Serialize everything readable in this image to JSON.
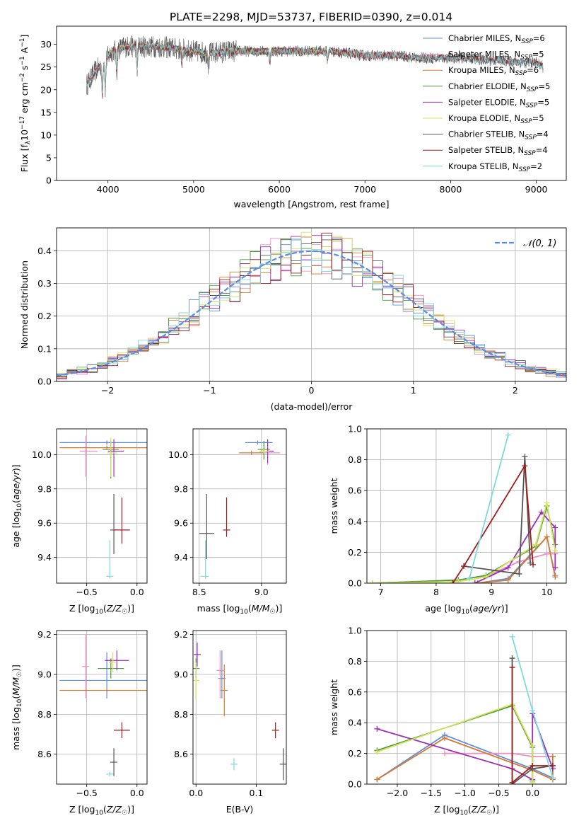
{
  "figure_title": "PLATE=2298, MJD=53737, FIBERID=0390, z=0.014",
  "colors": {
    "Chabrier MILES": "#5b8ee6",
    "Salpeter MILES": "#f08cc8",
    "Kroupa MILES": "#d97a2b",
    "Chabrier ELODIE": "#4c9a3f",
    "Salpeter ELODIE": "#9b2fb5",
    "Kroupa ELODIE": "#d6e35a",
    "Chabrier STELIB": "#555555",
    "Salpeter STELIB": "#a01c1c",
    "Kroupa STELIB": "#7fd9e0",
    "normal_curve": "#5b8ee6"
  },
  "chart_data": [
    {
      "id": "spectrum",
      "type": "line",
      "title": "PLATE=2298, MJD=53737, FIBERID=0390, z=0.014",
      "xlabel": "wavelength [Angstrom, rest frame]",
      "ylabel": "Flux [f_λ10^-17 erg cm^-2 s^-1 A^-1]",
      "xlim": [
        3400,
        9350
      ],
      "ylim": [
        0,
        34
      ],
      "xticks": [
        4000,
        5000,
        6000,
        7000,
        8000,
        9000
      ],
      "yticks": [
        0,
        5,
        10,
        15,
        20,
        25,
        30
      ],
      "grid": false,
      "legend_position": "top-right",
      "legend": [
        {
          "name": "Chabrier MILES",
          "nssp": 6
        },
        {
          "name": "Salpeter MILES",
          "nssp": 5
        },
        {
          "name": "Kroupa MILES",
          "nssp": 6
        },
        {
          "name": "Chabrier ELODIE",
          "nssp": 5
        },
        {
          "name": "Salpeter ELODIE",
          "nssp": 5
        },
        {
          "name": "Kroupa ELODIE",
          "nssp": 5
        },
        {
          "name": "Chabrier STELIB",
          "nssp": 4
        },
        {
          "name": "Salpeter STELIB",
          "nssp": 4
        },
        {
          "name": "Kroupa STELIB",
          "nssp": 2
        }
      ],
      "spectrum_wavelengths": [
        3750,
        3850,
        3950,
        4050,
        4200,
        4400,
        4600,
        4800,
        5000,
        5200,
        5400,
        5600,
        5800,
        6000,
        6200,
        6400,
        6600,
        6800,
        7000,
        7200,
        7400,
        7600,
        7800,
        8000,
        8200,
        8400,
        8600,
        8800,
        9000,
        9080
      ],
      "spectrum_flux": [
        21,
        24,
        26,
        28.5,
        29.5,
        29.5,
        29.5,
        29,
        28.5,
        28,
        28.5,
        28.5,
        28.5,
        28.5,
        28.5,
        28.5,
        28.5,
        28,
        27.5,
        27.5,
        27.5,
        27,
        27,
        27,
        27,
        26.5,
        26.5,
        26,
        26,
        25
      ],
      "models_wavelength_range": {
        "Chabrier MILES": [
          3750,
          7400
        ],
        "Salpeter MILES": [
          3750,
          7400
        ],
        "Kroupa MILES": [
          3750,
          7400
        ],
        "Chabrier ELODIE": [
          3900,
          6800
        ],
        "Salpeter ELODIE": [
          3900,
          6800
        ],
        "Kroupa ELODIE": [
          3900,
          6800
        ],
        "Chabrier STELIB": [
          3750,
          9080
        ],
        "Salpeter STELIB": [
          3750,
          9080
        ],
        "Kroupa STELIB": [
          3750,
          9080
        ]
      }
    },
    {
      "id": "residuals",
      "type": "histogram",
      "xlabel": "(data-model)/error",
      "ylabel": "Normed distribution",
      "xlim": [
        -2.5,
        2.5
      ],
      "ylim": [
        0,
        0.47
      ],
      "xticks": [
        -2,
        -1,
        0,
        1,
        2
      ],
      "yticks": [
        0.0,
        0.1,
        0.2,
        0.3,
        0.4
      ],
      "grid": true,
      "legend_position": "top-right",
      "legend": [
        "𝒩(0, 1)"
      ],
      "bin_width": 0.1
    },
    {
      "id": "age_vs_Z",
      "type": "errorbar",
      "xlabel": "Z [log10(Z/Z☉)]",
      "ylabel": "age [log10(age/yr)]",
      "xlim": [
        -0.8,
        0.1
      ],
      "ylim": [
        9.25,
        10.15
      ],
      "xticks": [
        -0.5,
        0.0
      ],
      "yticks": [
        9.4,
        9.6,
        9.8,
        10.0
      ],
      "grid": true,
      "points": [
        {
          "series": "Chabrier MILES",
          "x": -0.3,
          "y": 10.07,
          "xerr": [
            0.47,
            0.4
          ],
          "yerr": [
            0.0,
            0.0
          ]
        },
        {
          "series": "Salpeter MILES",
          "x": -0.51,
          "y": 10.02,
          "xerr": [
            0.06,
            0.12
          ],
          "yerr": [
            0.15,
            0.09
          ]
        },
        {
          "series": "Kroupa MILES",
          "x": -0.3,
          "y": 10.04,
          "xerr": [
            0.47,
            0.4
          ],
          "yerr": [
            0.0,
            0.0
          ]
        },
        {
          "series": "Chabrier ELODIE",
          "x": -0.26,
          "y": 10.03,
          "xerr": [
            0.08,
            0.08
          ],
          "yerr": [
            0.17,
            0.05
          ]
        },
        {
          "series": "Salpeter ELODIE",
          "x": -0.23,
          "y": 10.02,
          "xerr": [
            0.06,
            0.1
          ],
          "yerr": [
            0.15,
            0.07
          ]
        },
        {
          "series": "Kroupa ELODIE",
          "x": -0.26,
          "y": 10.01,
          "xerr": [
            0.02,
            0.06
          ],
          "yerr": [
            0.14,
            0.09
          ]
        },
        {
          "series": "Chabrier STELIB",
          "x": -0.23,
          "y": 9.56,
          "xerr": [
            0.03,
            0.03
          ],
          "yerr": [
            0.14,
            0.21
          ]
        },
        {
          "series": "Salpeter STELIB",
          "x": -0.15,
          "y": 9.56,
          "xerr": [
            0.08,
            0.08
          ],
          "yerr": [
            0.08,
            0.19
          ]
        },
        {
          "series": "Kroupa STELIB",
          "x": -0.27,
          "y": 9.29,
          "xerr": [
            0.02,
            0.0
          ],
          "yerr": [
            0.0,
            0.21
          ]
        }
      ]
    },
    {
      "id": "age_vs_mass",
      "type": "errorbar",
      "xlabel": "mass [log10(M/M☉)]",
      "ylabel": "",
      "xlim": [
        8.45,
        9.2
      ],
      "ylim": [
        9.25,
        10.15
      ],
      "xticks": [
        8.5,
        9.0
      ],
      "yticks": [
        9.4,
        9.6,
        9.8,
        10.0
      ],
      "grid": true,
      "points": [
        {
          "series": "Chabrier MILES",
          "x": 8.97,
          "y": 10.07,
          "xerr": [
            0.1,
            0.12
          ],
          "yerr": [
            0.0,
            0.0
          ]
        },
        {
          "series": "Salpeter MILES",
          "x": 9.05,
          "y": 10.01,
          "xerr": [
            0.1,
            0.1
          ],
          "yerr": [
            0.07,
            0.07
          ]
        },
        {
          "series": "Kroupa MILES",
          "x": 8.92,
          "y": 10.01,
          "xerr": [
            0.1,
            0.1
          ],
          "yerr": [
            0.0,
            0.0
          ]
        },
        {
          "series": "Chabrier ELODIE",
          "x": 9.02,
          "y": 10.03,
          "xerr": [
            0.05,
            0.05
          ],
          "yerr": [
            0.06,
            0.05
          ]
        },
        {
          "series": "Salpeter ELODIE",
          "x": 9.05,
          "y": 10.02,
          "xerr": [
            0.05,
            0.05
          ],
          "yerr": [
            0.07,
            0.07
          ]
        },
        {
          "series": "Kroupa ELODIE",
          "x": 9.02,
          "y": 10.02,
          "xerr": [
            0.04,
            0.04
          ],
          "yerr": [
            0.0,
            0.0
          ]
        },
        {
          "series": "Chabrier STELIB",
          "x": 8.56,
          "y": 9.54,
          "xerr": [
            0.06,
            0.06
          ],
          "yerr": [
            0.15,
            0.23
          ]
        },
        {
          "series": "Salpeter STELIB",
          "x": 8.72,
          "y": 9.56,
          "xerr": [
            0.02,
            0.02
          ],
          "yerr": [
            0.04,
            0.19
          ]
        },
        {
          "series": "Kroupa STELIB",
          "x": 8.55,
          "y": 9.29,
          "xerr": [
            0.04,
            0.0
          ],
          "yerr": [
            0.0,
            0.21
          ]
        }
      ]
    },
    {
      "id": "mass_weight_vs_age",
      "type": "line",
      "xlabel": "age [log10(age/yr)]",
      "ylabel": "mass weight",
      "xlim": [
        6.75,
        10.35
      ],
      "ylim": [
        0,
        1
      ],
      "xticks": [
        7,
        8,
        9,
        10
      ],
      "yticks": [
        0.0,
        0.2,
        0.4,
        0.6,
        0.8,
        1.0
      ],
      "grid": true,
      "series": [
        {
          "name": "Chabrier MILES",
          "x": [
            8.75,
            9.3,
            10.0,
            10.15
          ],
          "y": [
            0.0,
            0.03,
            0.3,
            0.05
          ]
        },
        {
          "name": "Salpeter MILES",
          "x": [
            9.0,
            9.5,
            10.0,
            10.15
          ],
          "y": [
            0.06,
            0.14,
            0.19,
            0.19
          ]
        },
        {
          "name": "Kroupa MILES",
          "x": [
            8.75,
            9.3,
            10.0,
            10.15
          ],
          "y": [
            0.0,
            0.02,
            0.3,
            0.04
          ]
        },
        {
          "name": "Chabrier ELODIE",
          "x": [
            6.85,
            8.4,
            8.9,
            9.8,
            10.0,
            10.15
          ],
          "y": [
            0.0,
            0.02,
            0.05,
            0.24,
            0.5,
            0.25
          ]
        },
        {
          "name": "Salpeter ELODIE",
          "x": [
            8.7,
            9.3,
            9.9,
            10.15,
            10.15
          ],
          "y": [
            0.0,
            0.1,
            0.46,
            0.36,
            0.1
          ]
        },
        {
          "name": "Kroupa ELODIE",
          "x": [
            6.85,
            8.4,
            8.9,
            9.8,
            10.0,
            10.15
          ],
          "y": [
            0.0,
            0.01,
            0.04,
            0.25,
            0.52,
            0.21
          ]
        },
        {
          "name": "Chabrier STELIB",
          "x": [
            8.5,
            9.5,
            9.6,
            9.7
          ],
          "y": [
            0.11,
            0.06,
            0.82,
            0.13
          ]
        },
        {
          "name": "Salpeter STELIB",
          "x": [
            8.3,
            8.5,
            9.6,
            9.75
          ],
          "y": [
            0.0,
            0.11,
            0.76,
            0.12
          ]
        },
        {
          "name": "Kroupa STELIB",
          "x": [
            8.6,
            9.3
          ],
          "y": [
            0.03,
            0.96
          ]
        }
      ]
    },
    {
      "id": "mass_vs_Z",
      "type": "errorbar",
      "xlabel": "Z [log10(Z/Z☉)]",
      "ylabel": "mass [log10(M/M☉)]",
      "xlim": [
        -0.8,
        0.1
      ],
      "ylim": [
        8.45,
        9.22
      ],
      "xticks": [
        -0.5,
        0.0
      ],
      "yticks": [
        8.6,
        8.8,
        9.0,
        9.2
      ],
      "grid": true,
      "points": [
        {
          "series": "Chabrier MILES",
          "x": -0.3,
          "y": 8.97,
          "xerr": [
            0.47,
            0.4
          ],
          "yerr": [
            0.09,
            0.14
          ]
        },
        {
          "series": "Salpeter MILES",
          "x": -0.51,
          "y": 9.04,
          "xerr": [
            0.0,
            0.0
          ],
          "yerr": [
            0.16,
            0.16
          ]
        },
        {
          "series": "Kroupa MILES",
          "x": -0.3,
          "y": 8.92,
          "xerr": [
            0.47,
            0.4
          ],
          "yerr": [
            0.0,
            0.0
          ]
        },
        {
          "series": "Chabrier ELODIE",
          "x": -0.26,
          "y": 9.03,
          "xerr": [
            0.13,
            0.13
          ],
          "yerr": [
            0.05,
            0.05
          ]
        },
        {
          "series": "Salpeter ELODIE",
          "x": -0.2,
          "y": 9.07,
          "xerr": [
            0.12,
            0.12
          ],
          "yerr": [
            0.05,
            0.05
          ]
        },
        {
          "series": "Kroupa ELODIE",
          "x": -0.24,
          "y": 9.06,
          "xerr": [
            0.04,
            0.04
          ],
          "yerr": [
            0.05,
            0.05
          ]
        },
        {
          "series": "Chabrier STELIB",
          "x": -0.23,
          "y": 8.56,
          "xerr": [
            0.03,
            0.03
          ],
          "yerr": [
            0.07,
            0.07
          ]
        },
        {
          "series": "Salpeter STELIB",
          "x": -0.15,
          "y": 8.72,
          "xerr": [
            0.08,
            0.08
          ],
          "yerr": [
            0.04,
            0.04
          ]
        },
        {
          "series": "Kroupa STELIB",
          "x": -0.27,
          "y": 8.5,
          "xerr": [
            0.02,
            0.0
          ],
          "yerr": [
            0.0,
            0.0
          ]
        }
      ]
    },
    {
      "id": "mass_vs_ebv",
      "type": "errorbar",
      "xlabel": "E(B-V)",
      "ylabel": "",
      "xlim": [
        -0.005,
        0.15
      ],
      "ylim": [
        8.45,
        9.22
      ],
      "xticks": [
        0.0,
        0.1
      ],
      "yticks": [
        8.6,
        8.8,
        9.0,
        9.2
      ],
      "grid": true,
      "points": [
        {
          "series": "Chabrier MILES",
          "x": 0.043,
          "y": 8.98,
          "xerr": [
            0.0,
            0.0
          ],
          "yerr": [
            0.1,
            0.14
          ]
        },
        {
          "series": "Salpeter MILES",
          "x": 0.04,
          "y": 9.02,
          "xerr": [
            0.0,
            0.0
          ],
          "yerr": [
            0.14,
            0.1
          ]
        },
        {
          "series": "Kroupa MILES",
          "x": 0.047,
          "y": 8.92,
          "xerr": [
            0.0,
            0.0
          ],
          "yerr": [
            0.13,
            0.13
          ]
        },
        {
          "series": "Chabrier ELODIE",
          "x": 0.0,
          "y": 9.03,
          "xerr": [
            0.0,
            0.0
          ],
          "yerr": [
            0.05,
            0.05
          ]
        },
        {
          "series": "Salpeter ELODIE",
          "x": 0.002,
          "y": 9.1,
          "xerr": [
            0.0,
            0.0
          ],
          "yerr": [
            0.06,
            0.06
          ]
        },
        {
          "series": "Kroupa ELODIE",
          "x": 0.0,
          "y": 8.97,
          "xerr": [
            0.0,
            0.0
          ],
          "yerr": [
            0.09,
            0.09
          ]
        },
        {
          "series": "Chabrier STELIB",
          "x": 0.145,
          "y": 8.55,
          "xerr": [
            0.0,
            0.0
          ],
          "yerr": [
            0.08,
            0.08
          ]
        },
        {
          "series": "Salpeter STELIB",
          "x": 0.132,
          "y": 8.72,
          "xerr": [
            0.0,
            0.0
          ],
          "yerr": [
            0.04,
            0.04
          ]
        },
        {
          "series": "Kroupa STELIB",
          "x": 0.063,
          "y": 8.55,
          "xerr": [
            0.0,
            0.0
          ],
          "yerr": [
            0.03,
            0.03
          ]
        }
      ]
    },
    {
      "id": "mass_weight_vs_Z",
      "type": "line",
      "xlabel": "Z [log10(Z/Z☉)]",
      "ylabel": "mass weight",
      "xlim": [
        -2.45,
        0.5
      ],
      "ylim": [
        0,
        1
      ],
      "xticks": [
        -2.0,
        -1.5,
        -1.0,
        -0.5,
        0.0
      ],
      "yticks": [
        0.0,
        0.2,
        0.4,
        0.6,
        0.8,
        1.0
      ],
      "grid": true,
      "series": [
        {
          "name": "Chabrier MILES",
          "x": [
            -2.3,
            -1.3,
            0.0,
            0.3
          ],
          "y": [
            0.03,
            0.32,
            0.1,
            0.04
          ]
        },
        {
          "name": "Salpeter MILES",
          "x": [
            -1.3,
            -0.3,
            0.0,
            0.3
          ],
          "y": [
            0.2,
            0.2,
            0.18,
            0.18
          ]
        },
        {
          "name": "Kroupa MILES",
          "x": [
            -2.3,
            -1.3,
            0.0,
            0.3,
            0.3
          ],
          "y": [
            0.03,
            0.3,
            0.09,
            0.03,
            0.18
          ]
        },
        {
          "name": "Chabrier ELODIE",
          "x": [
            -2.3,
            -0.3,
            0.0,
            0.0
          ],
          "y": [
            0.22,
            0.51,
            0.24,
            0.02
          ]
        },
        {
          "name": "Salpeter ELODIE",
          "x": [
            -2.3,
            -0.3,
            0.0,
            0.0,
            0.3
          ],
          "y": [
            0.36,
            0.1,
            0.03,
            0.46,
            0.1
          ]
        },
        {
          "name": "Kroupa ELODIE",
          "x": [
            -2.3,
            -0.3,
            0.0,
            0.0
          ],
          "y": [
            0.21,
            0.52,
            0.25,
            0.01
          ]
        },
        {
          "name": "Chabrier STELIB",
          "x": [
            -0.3,
            -0.3,
            0.0,
            0.3
          ],
          "y": [
            0.82,
            0.0,
            0.1,
            0.12
          ]
        },
        {
          "name": "Salpeter STELIB",
          "x": [
            -0.3,
            -0.3,
            0.0,
            0.3
          ],
          "y": [
            0.76,
            0.01,
            0.12,
            0.12
          ]
        },
        {
          "name": "Kroupa STELIB",
          "x": [
            -0.3,
            0.0,
            0.3
          ],
          "y": [
            0.96,
            0.48,
            0.04
          ]
        }
      ]
    }
  ]
}
